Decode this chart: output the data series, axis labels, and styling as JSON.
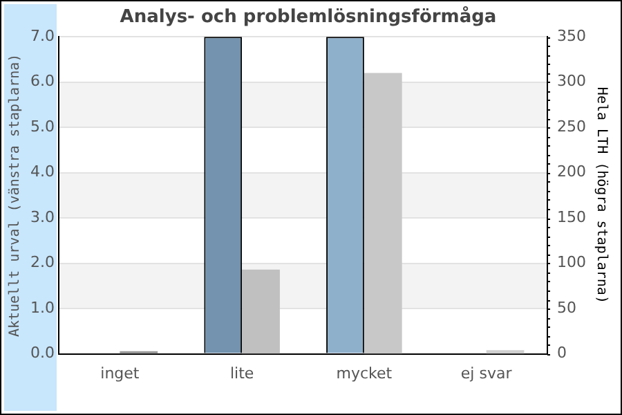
{
  "chart_data": {
    "type": "bar",
    "title": "Analys- och problemlösningsförmåga",
    "categories": [
      "inget",
      "lite",
      "mycket",
      "ej svar"
    ],
    "ylabel": "Aktuellt urval (vänstra staplarna)",
    "y2label": "Hela LTH (högra staplarna)",
    "series": [
      {
        "colors": [
          "#7393ae",
          "#7393ae",
          "#8fb0cb",
          "#8fb0cb"
        ],
        "values": [
          0,
          7,
          7,
          0
        ]
      },
      {
        "colors": [
          "#9a9a9a",
          "#c0c0c0",
          "#c8c8c8",
          "#d0d0d0"
        ],
        "values": [
          3,
          93,
          310,
          4
        ],
        "axis": "y2"
      }
    ],
    "ylim": [
      0,
      7
    ],
    "yticks": [
      {
        "value": 0,
        "label": "0.0"
      },
      {
        "value": 1,
        "label": "1.0"
      },
      {
        "value": 2,
        "label": "2.0"
      },
      {
        "value": 3,
        "label": "3.0"
      },
      {
        "value": 4,
        "label": "4.0"
      },
      {
        "value": 5,
        "label": "5.0"
      },
      {
        "value": 6,
        "label": "6.0"
      },
      {
        "value": 7,
        "label": "7.0"
      }
    ],
    "y2lim": [
      0,
      350
    ],
    "y2ticks": [
      0,
      50,
      100,
      150,
      200,
      250,
      300,
      350
    ],
    "grid": "y",
    "legend": false
  }
}
